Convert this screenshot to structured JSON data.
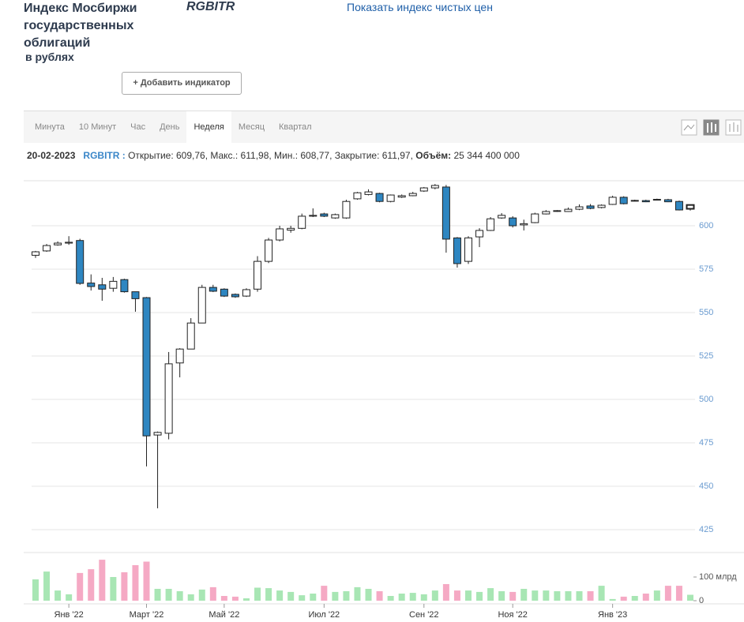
{
  "header": {
    "title": "Индекс Мосбиржи государственных облигаций",
    "subtitle": "в рублях",
    "ticker": "RGBITR",
    "link": "Показать индекс чистых цен",
    "button": "+ Добавить индикатор"
  },
  "tabs": [
    "Минута",
    "10 Минут",
    "Час",
    "День",
    "Неделя",
    "Месяц",
    "Квартал"
  ],
  "active_tab": 4,
  "info": {
    "date": "20-02-2023",
    "ticker": "RGBITR :",
    "ohlc": "Открытие: 609,76, Макс.: 611,98, Мин.: 608,77, Закрытие: 611,97,",
    "volume_label": "Объём:",
    "volume": "25 344 400 000"
  },
  "chart_data": {
    "type": "candlestick",
    "up_color": "#ffffff",
    "down_color": "#2e86c1",
    "up_volume_color": "#a8e6b4",
    "down_volume_color": "#f5a9c4",
    "categories": [
      null,
      null,
      null,
      "Янв '22",
      null,
      null,
      null,
      null,
      null,
      null,
      "Март '22",
      null,
      null,
      null,
      null,
      null,
      null,
      "Май '22",
      null,
      null,
      null,
      null,
      null,
      null,
      null,
      null,
      "Июл '22",
      null,
      null,
      null,
      null,
      null,
      null,
      null,
      null,
      "Сен '22",
      null,
      null,
      null,
      null,
      null,
      null,
      null,
      "Ноя '22",
      null,
      null,
      null,
      null,
      null,
      null,
      null,
      null,
      "Янв '23",
      null,
      null,
      null,
      null,
      null,
      null,
      null
    ],
    "open": [
      583,
      585.5,
      589,
      590,
      591.5,
      567,
      566,
      564,
      569,
      562,
      558.6,
      479.5,
      480.5,
      521,
      529,
      544,
      564.5,
      563.5,
      560.5,
      559.5,
      563.5,
      579.5,
      591.8,
      597.5,
      598.5,
      605.5,
      606.8,
      604.5,
      604.5,
      615.5,
      618,
      618.6,
      614,
      616.5,
      617.3,
      620,
      621.8,
      622.3,
      593,
      579.5,
      593.6,
      597.3,
      604.5,
      604.5,
      600.5,
      601.8,
      606.8,
      608.3,
      608.2,
      609.5,
      611.4,
      610.5,
      612.3,
      616.4,
      614.5,
      614.5,
      615,
      615,
      614,
      609.76
    ],
    "high": [
      585.5,
      589.5,
      591,
      594,
      592.5,
      572,
      570,
      570.5,
      569.5,
      562,
      559,
      481.5,
      527.3,
      529.5,
      546.8,
      566,
      566,
      564,
      561,
      564,
      582.5,
      593,
      600,
      600,
      607,
      610,
      607.5,
      607,
      615,
      619.5,
      621,
      619,
      618,
      618,
      619.5,
      622.3,
      624,
      623.5,
      593.5,
      594,
      598.6,
      605,
      607.3,
      605.5,
      603.5,
      607.5,
      609,
      609,
      610.5,
      612.3,
      612.5,
      612.3,
      617.3,
      617,
      615,
      615,
      615.6,
      615.5,
      614.5,
      611.98
    ],
    "low": [
      581.5,
      585,
      588.5,
      589,
      566,
      562.7,
      556.8,
      562,
      561.5,
      550.5,
      461.4,
      437.3,
      477,
      512.7,
      529,
      544,
      561.8,
      559,
      558.5,
      559,
      562,
      578.5,
      591,
      596,
      598,
      605,
      605,
      604,
      604,
      615,
      617.5,
      613.5,
      613.5,
      616,
      617,
      619.5,
      621,
      584.5,
      575.9,
      578,
      587.7,
      597,
      604,
      599,
      597.3,
      601.5,
      606.5,
      608,
      608,
      609,
      609.5,
      610,
      612,
      612.3,
      614,
      613.6,
      614.6,
      613.6,
      608.8,
      608.77
    ],
    "close": [
      585,
      588.6,
      590,
      590.5,
      566.8,
      565,
      563.5,
      568,
      562,
      558,
      479,
      481,
      520.5,
      529,
      544,
      564.5,
      562.3,
      559.5,
      559.1,
      563.2,
      579.5,
      591.8,
      598.2,
      598.5,
      605.5,
      606,
      605.5,
      606.4,
      614,
      619,
      619.5,
      614,
      617.7,
      617.3,
      618.6,
      621.8,
      623.2,
      592.3,
      578.2,
      593,
      597.3,
      604,
      606,
      600,
      601.2,
      606.8,
      608.2,
      608.7,
      609.5,
      610.9,
      610,
      611.8,
      616.4,
      612.7,
      614.6,
      613.8,
      615.2,
      613.8,
      609.1,
      611.97
    ],
    "volume": [
      90,
      123,
      43,
      27,
      117,
      133,
      173,
      100,
      120,
      150,
      165,
      50,
      50,
      40,
      27,
      47,
      57,
      20,
      17,
      10,
      55,
      53,
      43,
      37,
      23,
      30,
      63,
      37,
      40,
      57,
      50,
      40,
      20,
      30,
      33,
      27,
      43,
      70,
      43,
      43,
      37,
      53,
      40,
      37,
      50,
      43,
      43,
      40,
      40,
      40,
      40,
      63,
      7,
      17,
      20,
      30,
      43,
      63,
      63,
      25
    ],
    "ylim": [
      420,
      625
    ],
    "yticks": [
      425,
      450,
      475,
      500,
      525,
      550,
      575,
      600
    ],
    "volume_ylim": [
      0,
      200
    ],
    "volume_yticks": [
      0,
      {
        "value": 100,
        "label": "100 млрд"
      }
    ],
    "grid": true
  }
}
